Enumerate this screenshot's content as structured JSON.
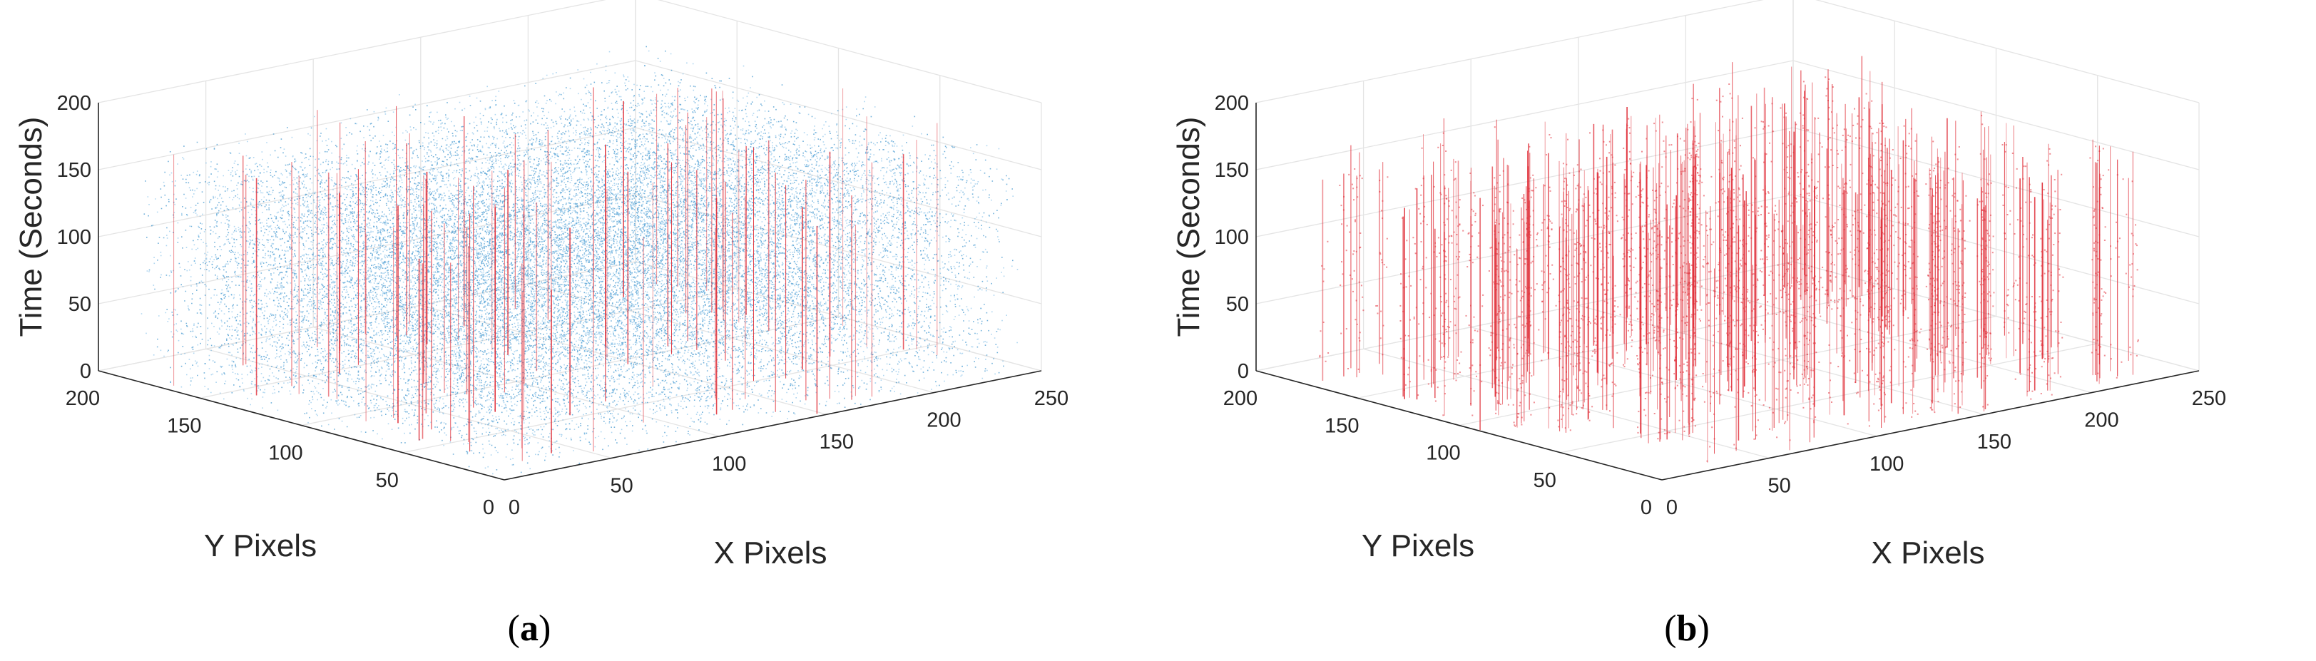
{
  "figure": {
    "panels": [
      {
        "id": "a",
        "caption_letter": "a"
      },
      {
        "id": "b",
        "caption_letter": "b"
      }
    ]
  },
  "chart_data": [
    {
      "type": "scatter",
      "view": "3d",
      "xlabel": "X Pixels",
      "ylabel": "Y Pixels",
      "zlabel": "Time (Seconds)",
      "x_ticks": [
        "0",
        "50",
        "100",
        "150",
        "200",
        "250"
      ],
      "y_ticks": [
        "0",
        "50",
        "100",
        "150",
        "200"
      ],
      "z_ticks": [
        "0",
        "50",
        "100",
        "150",
        "200"
      ],
      "xlim": [
        0,
        250
      ],
      "ylim": [
        0,
        200
      ],
      "zlim": [
        0,
        200
      ],
      "grid": true,
      "series": [
        {
          "color": "#0072BD",
          "approx_points": 200000,
          "x_range": [
            0,
            240
          ],
          "y_range": [
            0,
            180
          ],
          "z_range": [
            0,
            180
          ]
        },
        {
          "color": "#E0303A",
          "type": "vertical_lines",
          "approx_lines": 95,
          "z_range": [
            0,
            180
          ]
        }
      ]
    },
    {
      "type": "scatter",
      "view": "3d",
      "xlabel": "X Pixels",
      "ylabel": "Y Pixels",
      "zlabel": "Time (Seconds)",
      "x_ticks": [
        "0",
        "50",
        "100",
        "150",
        "200",
        "250"
      ],
      "y_ticks": [
        "0",
        "50",
        "100",
        "150",
        "200"
      ],
      "z_ticks": [
        "0",
        "50",
        "100",
        "150",
        "200"
      ],
      "xlim": [
        0,
        250
      ],
      "ylim": [
        0,
        200
      ],
      "zlim": [
        0,
        200
      ],
      "grid": true,
      "series": [
        {
          "color": "#E0303A",
          "type": "vertical_lines",
          "approx_lines": 320,
          "z_range": [
            0,
            180
          ]
        }
      ]
    }
  ]
}
